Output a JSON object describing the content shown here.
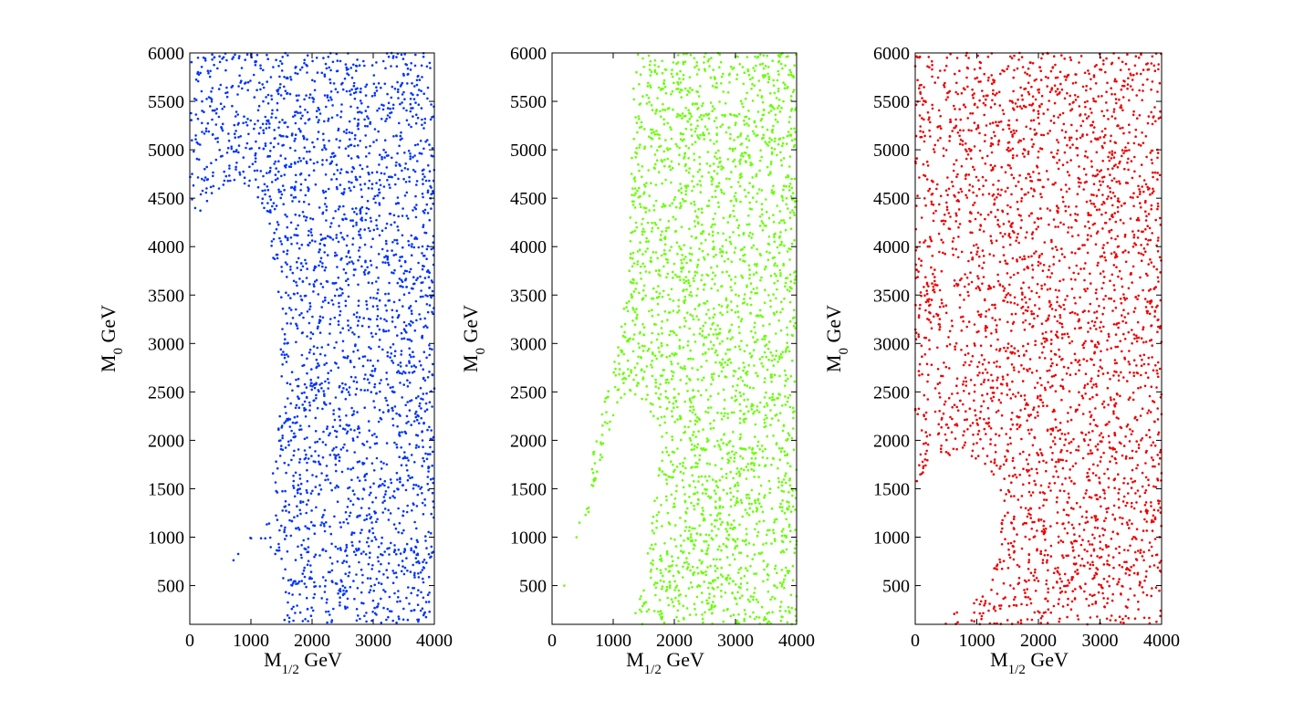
{
  "chart_data": [
    {
      "type": "scatter",
      "name": "panel-1",
      "color": "#0033ff",
      "xlabel": {
        "main": "M",
        "sub": "1/2",
        "unit": " GeV"
      },
      "ylabel": {
        "main": "M",
        "sub": "0",
        "unit": " GeV"
      },
      "xlim": [
        0,
        4000
      ],
      "ylim": [
        100,
        6000
      ],
      "xticks": [
        0,
        1000,
        2000,
        3000,
        4000
      ],
      "yticks": [
        500,
        1000,
        1500,
        2000,
        2500,
        3000,
        3500,
        4000,
        4500,
        5000,
        5500,
        6000
      ],
      "grid": false,
      "allowed_region_boundary": [
        [
          0,
          6000
        ],
        [
          0,
          4500
        ],
        [
          100,
          4300
        ],
        [
          400,
          4550
        ],
        [
          700,
          4700
        ],
        [
          1000,
          4550
        ],
        [
          1300,
          4200
        ],
        [
          1450,
          3400
        ],
        [
          1500,
          2800
        ],
        [
          1450,
          2300
        ],
        [
          1350,
          1900
        ],
        [
          1350,
          1300
        ],
        [
          1200,
          1050
        ],
        [
          900,
          900
        ],
        [
          600,
          650
        ],
        [
          500,
          500
        ],
        [
          700,
          800
        ],
        [
          1000,
          1000
        ],
        [
          1300,
          900
        ],
        [
          1500,
          700
        ],
        [
          1500,
          100
        ],
        [
          4000,
          100
        ],
        [
          4000,
          6000
        ]
      ],
      "point_count": 2600
    },
    {
      "type": "scatter",
      "name": "panel-2",
      "color": "#66ff00",
      "xlabel": {
        "main": "M",
        "sub": "1/2",
        "unit": " GeV"
      },
      "ylabel": {
        "main": "M",
        "sub": "0",
        "unit": " GeV"
      },
      "xlim": [
        0,
        4000
      ],
      "ylim": [
        100,
        6000
      ],
      "xticks": [
        0,
        1000,
        2000,
        3000,
        4000
      ],
      "yticks": [
        500,
        1000,
        1500,
        2000,
        2500,
        3000,
        3500,
        4000,
        4500,
        5000,
        5500,
        6000
      ],
      "grid": false,
      "allowed_region_boundary": [
        [
          1300,
          6000
        ],
        [
          1300,
          4500
        ],
        [
          1200,
          3500
        ],
        [
          1100,
          3000
        ],
        [
          900,
          2600
        ],
        [
          700,
          2000
        ],
        [
          600,
          1500
        ],
        [
          500,
          1000
        ],
        [
          700,
          1500
        ],
        [
          900,
          2000
        ],
        [
          1100,
          2400
        ],
        [
          1300,
          2500
        ],
        [
          1600,
          2300
        ],
        [
          1800,
          2000
        ],
        [
          1700,
          1500
        ],
        [
          1600,
          1000
        ],
        [
          1500,
          500
        ],
        [
          1300,
          100
        ],
        [
          4000,
          100
        ],
        [
          4000,
          6000
        ]
      ],
      "isolated_points": [
        [
          200,
          500
        ],
        [
          400,
          1000
        ],
        [
          450,
          1150
        ]
      ],
      "point_count": 2600
    },
    {
      "type": "scatter",
      "name": "panel-3",
      "color": "#ee0000",
      "xlabel": {
        "main": "M",
        "sub": "1/2",
        "unit": " GeV"
      },
      "ylabel": {
        "main": "M",
        "sub": "0",
        "unit": " GeV"
      },
      "xlim": [
        0,
        4000
      ],
      "ylim": [
        100,
        6000
      ],
      "xticks": [
        0,
        1000,
        2000,
        3000,
        4000
      ],
      "yticks": [
        500,
        1000,
        1500,
        2000,
        2500,
        3000,
        3500,
        4000,
        4500,
        5000,
        5500,
        6000
      ],
      "grid": false,
      "allowed_region_boundary": [
        [
          0,
          6000
        ],
        [
          0,
          1500
        ],
        [
          200,
          1700
        ],
        [
          500,
          1800
        ],
        [
          800,
          1850
        ],
        [
          1100,
          1750
        ],
        [
          1300,
          1550
        ],
        [
          1400,
          1300
        ],
        [
          1350,
          1000
        ],
        [
          1200,
          600
        ],
        [
          1000,
          400
        ],
        [
          700,
          250
        ],
        [
          500,
          150
        ],
        [
          400,
          100
        ],
        [
          4000,
          100
        ],
        [
          4000,
          6000
        ]
      ],
      "point_count": 3000
    }
  ]
}
